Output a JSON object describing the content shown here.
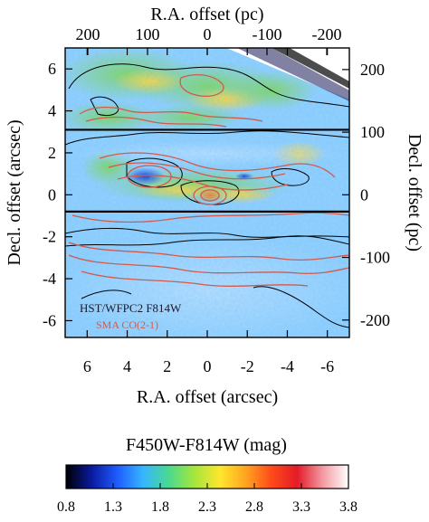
{
  "chart_data": {
    "type": "heatmap",
    "top_axis_label": "R.A. offset (pc)",
    "bottom_axis_label": "R.A. offset (arcsec)",
    "left_axis_label": "Decl. offset (arcsec)",
    "right_axis_label": "Decl. offset (pc)",
    "xlim_arcsec": [
      7.1,
      -7.1
    ],
    "ylim_arcsec": [
      -6.8,
      7.0
    ],
    "bottom_ticks": [
      6,
      4,
      2,
      0,
      -2,
      -4,
      -6
    ],
    "bottom_tick_labels": [
      "6",
      "4",
      "2",
      "0",
      "-2",
      "-4",
      "-6"
    ],
    "left_ticks": [
      -6,
      -4,
      -2,
      0,
      2,
      4,
      6
    ],
    "left_tick_labels": [
      "-6",
      "-4",
      "-2",
      "0",
      "2",
      "4",
      "6"
    ],
    "top_ticks_pc": [
      200,
      100,
      0,
      -100,
      -200
    ],
    "top_tick_labels": [
      "200",
      "100",
      "0",
      "-100",
      "-200"
    ],
    "right_ticks_pc": [
      200,
      100,
      0,
      -100,
      -200
    ],
    "right_tick_labels": [
      "200",
      "100",
      "0",
      "-100",
      "-200"
    ],
    "pc_per_arcsec": 33.5,
    "box_y_arcsec": [
      -0.8,
      3.1
    ],
    "annotation_instrument": "HST/WFPC2 F814W",
    "annotation_contours": "SMA CO(2-1)",
    "colorbar": {
      "label": "F450W-F814W (mag)",
      "min": 0.8,
      "max": 3.8,
      "ticks": [
        0.8,
        1.3,
        1.8,
        2.3,
        2.8,
        3.3,
        3.8
      ],
      "tick_labels": [
        "0.8",
        "1.3",
        "1.8",
        "2.3",
        "2.8",
        "3.3",
        "3.8"
      ],
      "colors": [
        "#000000",
        "#0a1aa0",
        "#1e5cff",
        "#35b6ff",
        "#4ad98f",
        "#a6e63c",
        "#ffe62e",
        "#ffa41f",
        "#ff4a1a",
        "#e41b28",
        "#f29aa2",
        "#ffffff"
      ]
    },
    "colors": {
      "background": "#8fd2ff",
      "contour_color": "#d25a4a",
      "box_color": "#000000"
    }
  }
}
